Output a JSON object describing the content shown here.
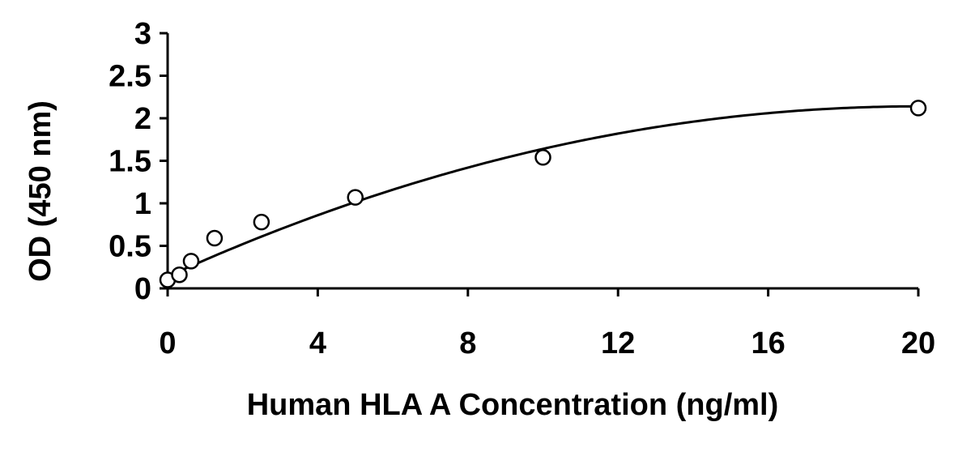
{
  "chart_data": {
    "type": "scatter",
    "xlabel": "Human HLA A Concentration (ng/ml)",
    "ylabel": "OD (450 nm)",
    "xlim": [
      0,
      20
    ],
    "ylim": [
      0,
      3
    ],
    "x_ticks": [
      "0",
      "4",
      "8",
      "12",
      "16",
      "20"
    ],
    "y_ticks": [
      "0",
      "0.5",
      "1",
      "1.5",
      "2",
      "2.5",
      "3"
    ],
    "grid": false,
    "series": [
      {
        "x": [
          0,
          0.313,
          0.625,
          1.25,
          2.5,
          5,
          10,
          20
        ],
        "y": [
          0.1,
          0.16,
          0.32,
          0.59,
          0.78,
          1.07,
          1.54,
          2.12
        ]
      }
    ],
    "fit_curve": {
      "type": "quadratic",
      "coefficients": [
        0.14,
        0.2,
        -0.005
      ],
      "x_range": [
        0,
        20
      ]
    }
  }
}
